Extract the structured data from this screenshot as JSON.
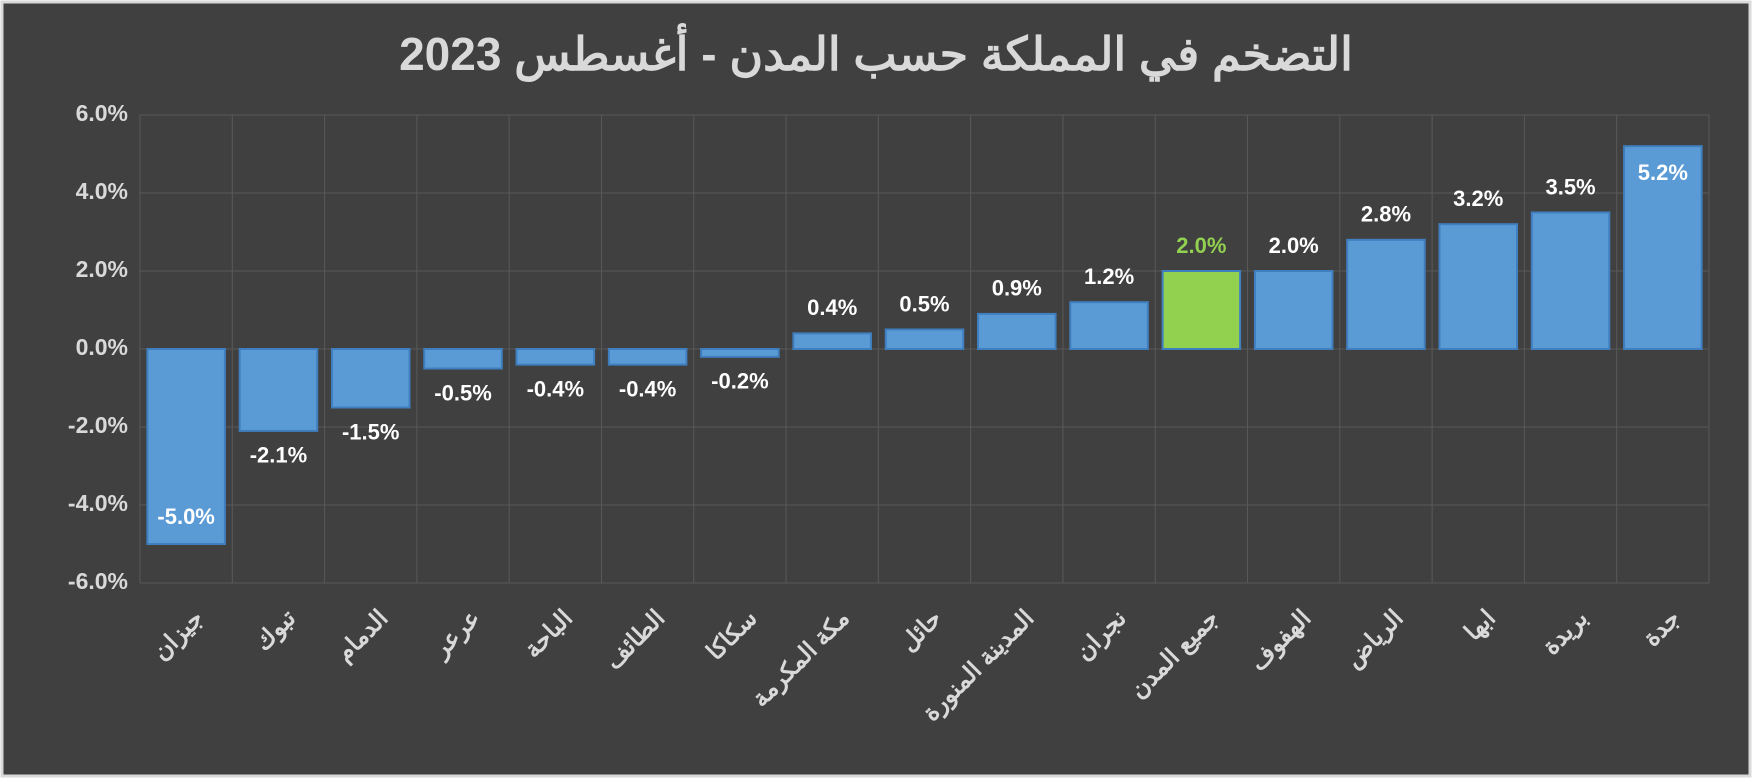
{
  "chart_data": {
    "type": "bar",
    "title": "التضخم في المملكة حسب المدن - أغسطس 2023",
    "categories": [
      "جيزان",
      "تبوك",
      "الدمام",
      "عرعر",
      "الباحة",
      "الطائف",
      "سكاكا",
      "مكة المكرمة",
      "حائل",
      "المدينة المنورة",
      "نجران",
      "جميع المدن",
      "الهفوف",
      "الرياض",
      "ابها",
      "بريدة",
      "جدة"
    ],
    "values": [
      -5.0,
      -2.1,
      -1.5,
      -0.5,
      -0.4,
      -0.4,
      -0.2,
      0.4,
      0.5,
      0.9,
      1.2,
      2.0,
      2.0,
      2.8,
      3.2,
      3.5,
      5.2
    ],
    "value_labels": [
      "-5.0%",
      "-2.1%",
      "-1.5%",
      "-0.5%",
      "-0.4%",
      "-0.4%",
      "-0.2%",
      "0.4%",
      "0.5%",
      "0.9%",
      "1.2%",
      "2.0%",
      "2.0%",
      "2.8%",
      "3.2%",
      "3.5%",
      "5.2%"
    ],
    "color": "#5b9bd5",
    "colors": [
      "#5b9bd5",
      "#5b9bd5",
      "#5b9bd5",
      "#5b9bd5",
      "#5b9bd5",
      "#5b9bd5",
      "#5b9bd5",
      "#5b9bd5",
      "#5b9bd5",
      "#5b9bd5",
      "#5b9bd5",
      "#92d050",
      "#5b9bd5",
      "#5b9bd5",
      "#5b9bd5",
      "#5b9bd5",
      "#5b9bd5"
    ],
    "ylim": [
      -6,
      6
    ],
    "yticks": [
      {
        "value": -6,
        "label": "-6.0%"
      },
      {
        "value": -4,
        "label": "-4.0%"
      },
      {
        "value": -2,
        "label": "-2.0%"
      },
      {
        "value": 0,
        "label": "0.0%"
      },
      {
        "value": 2,
        "label": "2.0%"
      },
      {
        "value": 4,
        "label": "4.0%"
      },
      {
        "value": 6,
        "label": "6.0%"
      }
    ],
    "grid": true
  }
}
